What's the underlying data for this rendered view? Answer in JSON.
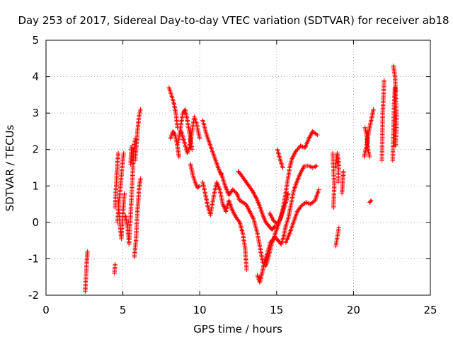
{
  "chart_data": {
    "type": "scatter",
    "title": "Day 253 of 2017, Sidereal Day-to-day VTEC variation (SDTVAR) for receiver ab18",
    "xlabel": "GPS time / hours",
    "ylabel": "SDTVAR / TECUs",
    "xlim": [
      0,
      25
    ],
    "ylim": [
      -2,
      5
    ],
    "xticks": [
      "0",
      "5",
      "10",
      "15",
      "20",
      "25"
    ],
    "yticks": [
      "-2",
      "-1",
      "0",
      "1",
      "2",
      "3",
      "4",
      "5"
    ],
    "grid": true,
    "marker": "+",
    "marker_color": "#ff0000",
    "segments": [
      [
        [
          2.55,
          -1.9
        ],
        [
          2.6,
          -1.5
        ],
        [
          2.65,
          -1.1
        ],
        [
          2.7,
          -0.8
        ]
      ],
      [
        [
          4.45,
          -1.4
        ],
        [
          4.5,
          -1.15
        ]
      ],
      [
        [
          4.5,
          0.4
        ],
        [
          4.55,
          0.9
        ],
        [
          4.6,
          1.3
        ],
        [
          4.65,
          1.6
        ],
        [
          4.7,
          1.9
        ]
      ],
      [
        [
          4.65,
          0.0
        ],
        [
          4.75,
          0.6
        ],
        [
          4.85,
          1.0
        ],
        [
          4.95,
          1.5
        ],
        [
          5.05,
          1.9
        ]
      ],
      [
        [
          4.7,
          0.6
        ],
        [
          4.8,
          0.0
        ],
        [
          4.9,
          -0.45
        ],
        [
          5.0,
          0.2
        ],
        [
          5.1,
          0.8
        ]
      ],
      [
        [
          5.15,
          0.2
        ],
        [
          5.3,
          -0.1
        ],
        [
          5.4,
          -0.6
        ],
        [
          5.5,
          0.2
        ],
        [
          5.6,
          1.0
        ],
        [
          5.7,
          1.9
        ],
        [
          5.8,
          2.3
        ]
      ],
      [
        [
          5.5,
          1.6
        ],
        [
          5.55,
          2.0
        ],
        [
          5.6,
          2.1
        ]
      ],
      [
        [
          5.75,
          -0.95
        ],
        [
          5.85,
          -0.5
        ],
        [
          5.95,
          0.3
        ],
        [
          6.05,
          0.9
        ],
        [
          6.15,
          1.2
        ]
      ],
      [
        [
          5.8,
          1.7
        ],
        [
          5.9,
          2.2
        ],
        [
          5.95,
          2.5
        ],
        [
          6.05,
          2.9
        ],
        [
          6.15,
          3.1
        ]
      ],
      [
        [
          8.0,
          3.7
        ],
        [
          8.15,
          3.5
        ],
        [
          8.3,
          3.3
        ],
        [
          8.45,
          3.0
        ],
        [
          8.55,
          2.6
        ]
      ],
      [
        [
          8.1,
          2.3
        ],
        [
          8.25,
          2.5
        ],
        [
          8.4,
          2.4
        ],
        [
          8.55,
          2.1
        ],
        [
          8.65,
          1.8
        ]
      ],
      [
        [
          8.6,
          2.2
        ],
        [
          8.75,
          2.6
        ],
        [
          8.9,
          3.0
        ],
        [
          9.05,
          3.1
        ],
        [
          9.2,
          2.8
        ],
        [
          9.35,
          2.4
        ],
        [
          9.5,
          2.0
        ]
      ],
      [
        [
          8.8,
          2.5
        ],
        [
          9.0,
          2.2
        ],
        [
          9.2,
          1.9
        ],
        [
          9.35,
          2.1
        ],
        [
          9.5,
          2.5
        ],
        [
          9.65,
          2.9
        ],
        [
          9.8,
          2.7
        ],
        [
          10.0,
          2.3
        ]
      ],
      [
        [
          9.4,
          1.6
        ],
        [
          9.55,
          1.3
        ],
        [
          9.7,
          1.1
        ],
        [
          9.85,
          0.95
        ],
        [
          10.0,
          1.0
        ]
      ],
      [
        [
          10.2,
          2.8
        ],
        [
          10.45,
          2.4
        ],
        [
          10.7,
          2.1
        ],
        [
          10.95,
          1.8
        ],
        [
          11.2,
          1.5
        ],
        [
          11.4,
          1.3
        ]
      ],
      [
        [
          10.2,
          1.1
        ],
        [
          10.4,
          0.7
        ],
        [
          10.55,
          0.4
        ],
        [
          10.7,
          0.2
        ],
        [
          10.9,
          0.7
        ],
        [
          11.1,
          1.1
        ],
        [
          11.3,
          0.9
        ],
        [
          11.5,
          0.5
        ],
        [
          11.7,
          0.3
        ],
        [
          11.9,
          0.6
        ],
        [
          12.1,
          0.35
        ],
        [
          12.35,
          0.15
        ],
        [
          12.6,
          0.0
        ],
        [
          12.8,
          -0.3
        ],
        [
          12.95,
          -0.7
        ],
        [
          13.05,
          -1.3
        ]
      ],
      [
        [
          11.4,
          1.35
        ],
        [
          11.65,
          1.0
        ],
        [
          11.9,
          0.75
        ],
        [
          12.15,
          0.9
        ],
        [
          12.4,
          0.8
        ],
        [
          12.6,
          0.6
        ],
        [
          12.8,
          0.55
        ],
        [
          13.0,
          0.5
        ],
        [
          13.25,
          0.3
        ],
        [
          13.5,
          0.1
        ],
        [
          13.75,
          -0.3
        ],
        [
          13.95,
          -0.75
        ],
        [
          14.1,
          -1.1
        ]
      ],
      [
        [
          12.5,
          1.4
        ],
        [
          12.7,
          1.3
        ],
        [
          12.95,
          1.15
        ],
        [
          13.2,
          1.0
        ],
        [
          13.45,
          0.85
        ],
        [
          13.7,
          0.65
        ],
        [
          13.9,
          0.45
        ],
        [
          14.1,
          0.2
        ],
        [
          14.3,
          0.0
        ],
        [
          14.5,
          -0.1
        ],
        [
          14.7,
          -0.2
        ],
        [
          14.9,
          -0.1
        ]
      ],
      [
        [
          13.75,
          -1.45
        ],
        [
          13.9,
          -1.65
        ],
        [
          14.05,
          -1.4
        ],
        [
          14.2,
          -1.1
        ],
        [
          14.4,
          -0.85
        ],
        [
          14.6,
          -0.55
        ],
        [
          14.8,
          -0.45
        ],
        [
          15.0,
          -0.2
        ],
        [
          15.2,
          0.05
        ],
        [
          15.4,
          0.3
        ],
        [
          15.6,
          0.55
        ],
        [
          15.75,
          0.8
        ]
      ],
      [
        [
          14.3,
          -1.2
        ],
        [
          14.5,
          -0.9
        ],
        [
          14.7,
          -0.55
        ],
        [
          14.9,
          -0.4
        ],
        [
          15.1,
          -0.5
        ],
        [
          15.3,
          -0.6
        ],
        [
          15.45,
          -0.4
        ],
        [
          15.6,
          -0.1
        ],
        [
          15.75,
          0.1
        ],
        [
          15.9,
          0.4
        ],
        [
          16.1,
          0.85
        ],
        [
          16.3,
          1.1
        ],
        [
          16.55,
          1.35
        ],
        [
          16.8,
          1.55
        ],
        [
          17.1,
          1.55
        ],
        [
          17.35,
          1.5
        ],
        [
          17.6,
          1.55
        ]
      ],
      [
        [
          14.55,
          0.25
        ],
        [
          14.8,
          0.05
        ],
        [
          15.05,
          -0.05
        ],
        [
          15.25,
          0.1
        ],
        [
          15.4,
          0.35
        ],
        [
          15.55,
          0.7
        ],
        [
          15.7,
          1.1
        ],
        [
          15.85,
          1.5
        ],
        [
          16.0,
          1.75
        ],
        [
          16.25,
          1.95
        ],
        [
          16.55,
          2.1
        ],
        [
          16.85,
          2.05
        ],
        [
          17.1,
          2.3
        ],
        [
          17.35,
          2.5
        ],
        [
          17.65,
          2.4
        ]
      ],
      [
        [
          15.05,
          2.0
        ],
        [
          15.25,
          1.7
        ],
        [
          15.4,
          1.5
        ]
      ],
      [
        [
          15.6,
          -0.55
        ],
        [
          15.85,
          -0.3
        ],
        [
          16.1,
          0.0
        ],
        [
          16.35,
          0.3
        ],
        [
          16.6,
          0.45
        ],
        [
          16.9,
          0.55
        ],
        [
          17.2,
          0.5
        ],
        [
          17.5,
          0.6
        ],
        [
          17.75,
          0.9
        ]
      ],
      [
        [
          18.65,
          1.9
        ],
        [
          18.7,
          1.5
        ],
        [
          18.75,
          1.0
        ],
        [
          18.7,
          0.4
        ]
      ],
      [
        [
          18.8,
          1.5
        ],
        [
          18.95,
          1.9
        ],
        [
          19.05,
          1.6
        ],
        [
          19.0,
          1.1
        ]
      ],
      [
        [
          18.85,
          -0.65
        ],
        [
          18.95,
          -0.4
        ],
        [
          19.05,
          -0.15
        ]
      ],
      [
        [
          19.25,
          0.8
        ],
        [
          19.3,
          1.1
        ],
        [
          19.35,
          1.4
        ]
      ],
      [
        [
          20.7,
          1.8
        ],
        [
          20.85,
          2.1
        ],
        [
          21.0,
          2.5
        ],
        [
          21.15,
          2.8
        ],
        [
          21.3,
          3.1
        ]
      ],
      [
        [
          20.75,
          2.6
        ],
        [
          20.85,
          2.4
        ],
        [
          20.95,
          2.0
        ],
        [
          21.05,
          1.8
        ]
      ],
      [
        [
          21.05,
          0.55
        ],
        [
          21.15,
          0.6
        ]
      ],
      [
        [
          21.85,
          1.7
        ],
        [
          21.9,
          3.0
        ],
        [
          22.0,
          3.9
        ]
      ],
      [
        [
          22.55,
          1.7
        ],
        [
          22.6,
          2.5
        ],
        [
          22.65,
          3.3
        ],
        [
          22.7,
          3.7
        ],
        [
          22.75,
          3.4
        ],
        [
          22.8,
          2.9
        ],
        [
          22.75,
          2.1
        ]
      ],
      [
        [
          22.6,
          4.3
        ],
        [
          22.7,
          4.0
        ],
        [
          22.75,
          3.6
        ]
      ]
    ]
  }
}
